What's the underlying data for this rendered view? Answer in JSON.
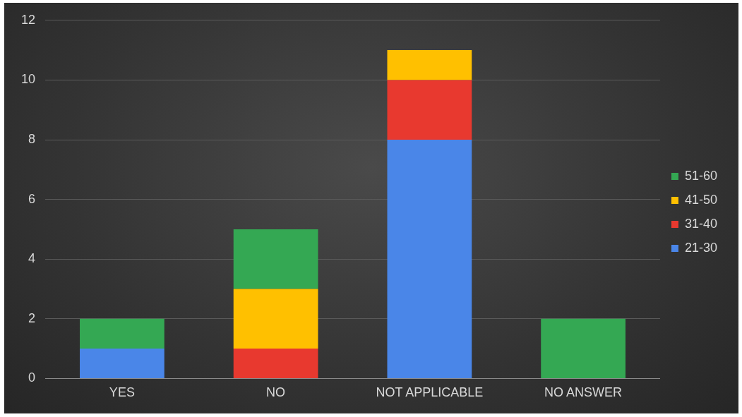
{
  "chart_data": {
    "type": "bar",
    "stacked": true,
    "categories": [
      "YES",
      "NO",
      "NOT APPLICABLE",
      "NO ANSWER"
    ],
    "series": [
      {
        "name": "21-30",
        "color": "#4a86e8",
        "values": [
          1,
          0,
          8,
          0
        ]
      },
      {
        "name": "31-40",
        "color": "#e8392f",
        "values": [
          0,
          1,
          2,
          0
        ]
      },
      {
        "name": "41-50",
        "color": "#ffc000",
        "values": [
          0,
          2,
          1,
          0
        ]
      },
      {
        "name": "51-60",
        "color": "#34a853",
        "values": [
          1,
          2,
          0,
          2
        ]
      }
    ],
    "ylim": [
      0,
      12
    ],
    "yticks": [
      0,
      2,
      4,
      6,
      8,
      10,
      12
    ],
    "grid": "y",
    "legend": "right"
  }
}
